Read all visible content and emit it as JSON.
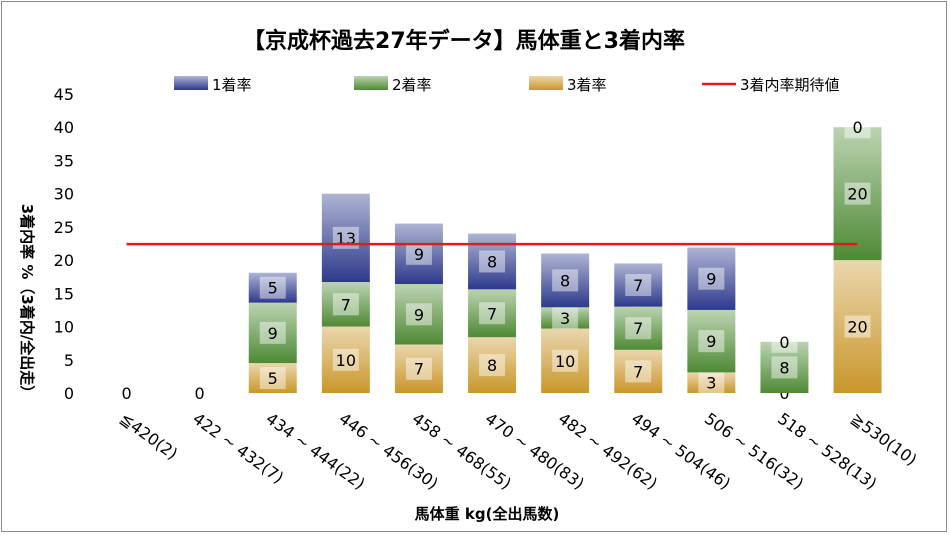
{
  "chart_data": {
    "type": "bar",
    "title": "【京成杯過去27年データ】馬体重と3着内率",
    "xlabel": "馬体重 kg(全出馬数)",
    "ylabel": "3着内率 %（3着内/全出走）",
    "ylim": [
      0,
      45
    ],
    "yticks": [
      "0",
      "5",
      "10",
      "15",
      "20",
      "25",
      "30",
      "35",
      "40",
      "45"
    ],
    "categories": [
      "≦420(2)",
      "422 ~ 432(7)",
      "434 ~ 444(22)",
      "446 ~ 456(30)",
      "458 ~ 468(55)",
      "470 ~ 480(83)",
      "482 ~ 492(62)",
      "494 ~ 504(46)",
      "506 ~ 516(32)",
      "518 ~ 528(13)",
      "≧530(10)"
    ],
    "series": [
      {
        "name": "3着率",
        "color": "#c9962a",
        "values": [
          0,
          0,
          4.5,
          10,
          7.3,
          8.4,
          9.7,
          6.5,
          3.1,
          0,
          20
        ]
      },
      {
        "name": "2着率",
        "color": "#4e8a34",
        "values": [
          0,
          0,
          9.1,
          6.7,
          9.1,
          7.2,
          3.2,
          6.5,
          9.4,
          7.7,
          20
        ]
      },
      {
        "name": "1着率",
        "color": "#2d3a8c",
        "values": [
          0,
          0,
          4.5,
          13.3,
          9.1,
          8.4,
          8.1,
          6.5,
          9.4,
          0,
          0
        ]
      }
    ],
    "segment_labels": {
      "3着率": [
        "",
        "",
        "5",
        "10",
        "7",
        "8",
        "10",
        "7",
        "3",
        "0",
        "20"
      ],
      "2着率": [
        "",
        "",
        "9",
        "7",
        "9",
        "7",
        "3",
        "7",
        "9",
        "8",
        "20"
      ],
      "1着率": [
        "",
        "",
        "5",
        "13",
        "9",
        "8",
        "8",
        "7",
        "9",
        "0",
        "0"
      ]
    },
    "zero_labels": [
      "0",
      "0",
      "",
      "",
      "",
      "",
      "",
      "",
      "",
      "",
      ""
    ],
    "expected_line": {
      "name": "3着内率期待値",
      "color": "#e31a1c",
      "value": 22.4
    },
    "legend_order": [
      "1着率",
      "2着率",
      "3着率",
      "3着内率期待値"
    ],
    "legend_position": "top",
    "grid": false
  }
}
